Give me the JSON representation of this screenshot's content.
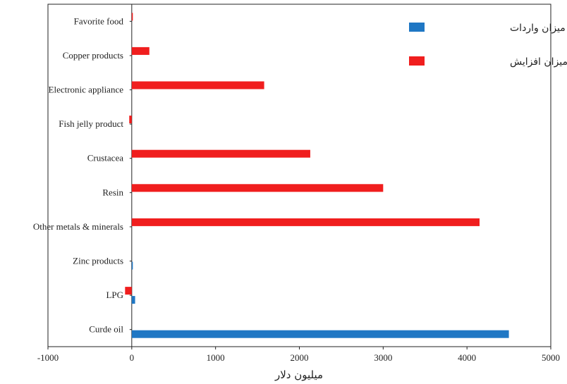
{
  "chart_data": {
    "type": "bar",
    "orientation": "horizontal",
    "categories": [
      "Favorite food",
      "Copper products",
      "Electronic appliance",
      "Fish jelly product",
      "Crustacea",
      "Resin",
      "Other metals & minerals",
      "Zinc products",
      "LPG",
      "Curde oil"
    ],
    "series": [
      {
        "name": "میزان واردات",
        "color": "#1f77c4",
        "values": [
          0,
          0,
          0,
          0,
          0,
          0,
          0,
          10,
          40,
          4500
        ]
      },
      {
        "name": "میزان افزایش",
        "color": "#f01e1e",
        "values": [
          10,
          210,
          1580,
          -30,
          2130,
          3000,
          4150,
          0,
          -80,
          0
        ]
      }
    ],
    "xlabel": "میلیون دلار",
    "ylabel": "",
    "xlim": [
      -1000,
      5000
    ],
    "xticks": [
      -1000,
      0,
      1000,
      2000,
      3000,
      4000,
      5000
    ],
    "grid": false,
    "legend_position": "top-right"
  }
}
